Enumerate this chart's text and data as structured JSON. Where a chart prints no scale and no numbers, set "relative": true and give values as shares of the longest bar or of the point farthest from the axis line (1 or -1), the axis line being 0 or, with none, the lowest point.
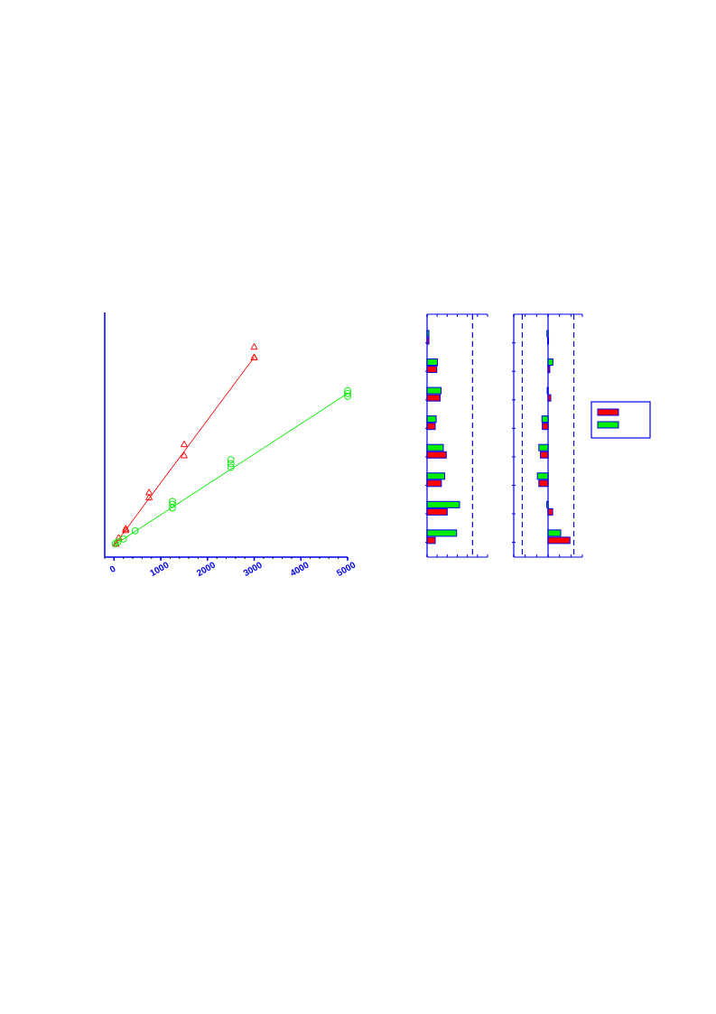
{
  "chart_data": [
    {
      "type": "scatter",
      "relative": true,
      "xlim": [
        -200,
        5000
      ],
      "xticks": [
        0,
        1000,
        2000,
        3000,
        4000,
        5000
      ],
      "series": [
        {
          "color": "#ff0000",
          "marker": "triangle",
          "x": [
            3000,
            3000,
            3000,
            1500,
            1500,
            750,
            750,
            250,
            250,
            100,
            40
          ],
          "values": [
            1.0,
            0.95,
            0.95,
            0.537,
            0.484,
            0.308,
            0.284,
            0.136,
            0.129,
            0.093,
            0.064
          ]
        },
        {
          "type": "line",
          "color": "#ff0000",
          "x": [
            0,
            3000
          ],
          "values": [
            0.055,
            0.95
          ]
        },
        {
          "color": "#00ee00",
          "marker": "circle",
          "x": [
            5000,
            5000,
            5000,
            2500,
            2500,
            2500,
            1250,
            1250,
            1250,
            450,
            200,
            80,
            25
          ],
          "values": [
            0.791,
            0.778,
            0.764,
            0.463,
            0.444,
            0.427,
            0.265,
            0.251,
            0.234,
            0.125,
            0.086,
            0.072,
            0.064
          ]
        },
        {
          "type": "line",
          "color": "#00ee00",
          "x": [
            0,
            5000
          ],
          "values": [
            0.057,
            0.778
          ]
        }
      ]
    },
    {
      "type": "bar",
      "orientation": "horizontal",
      "relative": true,
      "categories": [
        null,
        null,
        null,
        null,
        null,
        null,
        null,
        null
      ],
      "series": [
        {
          "color": "#ff0000",
          "values": [
            0.056,
            0.3,
            0.4,
            0.25,
            0.59,
            0.44,
            0.62,
            0.25
          ]
        },
        {
          "color": "#00ee00",
          "values": [
            0.056,
            0.32,
            0.43,
            0.28,
            0.5,
            0.54,
            1.0,
            0.91
          ]
        }
      ],
      "ref_lines": [
        {
          "axis": "x",
          "value": 1.4,
          "line_style": "dashed"
        }
      ]
    },
    {
      "type": "bar",
      "orientation": "horizontal",
      "relative": true,
      "categories": [
        null,
        null,
        null,
        null,
        null,
        null,
        null,
        null
      ],
      "series": [
        {
          "color": "#ff0000",
          "values": [
            -0.02,
            0.08,
            0.125,
            -0.26,
            -0.35,
            -0.42,
            0.21,
            1.0
          ]
        },
        {
          "color": "#00ee00",
          "values": [
            -0.05,
            0.22,
            -0.04,
            -0.28,
            -0.42,
            -0.49,
            -0.056,
            0.58
          ]
        }
      ],
      "ref_lines": [
        {
          "axis": "x",
          "value": 0,
          "line_style": "solid"
        },
        {
          "axis": "x",
          "value": -1.18,
          "line_style": "dashed"
        },
        {
          "axis": "x",
          "value": 1.18,
          "line_style": "dashed"
        }
      ]
    }
  ]
}
